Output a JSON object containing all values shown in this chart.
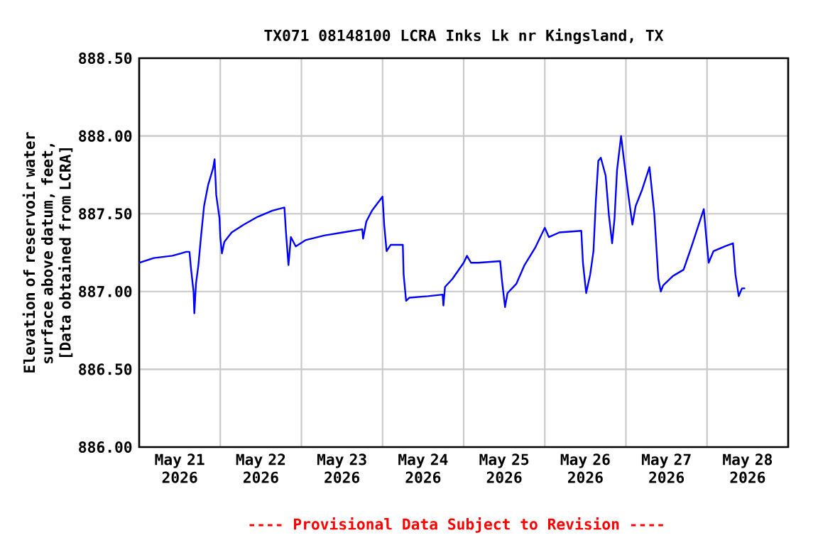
{
  "chart_data": {
    "type": "line",
    "title": "TX071 08148100 LCRA Inks Lk nr Kingsland, TX",
    "ylabel": "Elevation of reservoir water surface above datum, feet, [Data obtained from LCRA]",
    "annotations": [
      "---- Provisional Data Subject to Revision ----"
    ],
    "grid": true,
    "marker": "none",
    "line_style": "solid",
    "xlim": [
      "2026-05-21T00:00",
      "2026-05-29T00:00"
    ],
    "xticks": [
      {
        "value": "2026-05-21T12:00",
        "label": "May 21 2026"
      },
      {
        "value": "2026-05-22T12:00",
        "label": "May 22 2026"
      },
      {
        "value": "2026-05-23T12:00",
        "label": "May 23 2026"
      },
      {
        "value": "2026-05-24T12:00",
        "label": "May 24 2026"
      },
      {
        "value": "2026-05-25T12:00",
        "label": "May 25 2026"
      },
      {
        "value": "2026-05-26T12:00",
        "label": "May 26 2026"
      },
      {
        "value": "2026-05-27T12:00",
        "label": "May 27 2026"
      },
      {
        "value": "2026-05-28T12:00",
        "label": "May 28 2026"
      },
      {
        "value": "2026-05-22T00:00",
        "label": null
      },
      {
        "value": "2026-05-23T00:00",
        "label": null
      },
      {
        "value": "2026-05-24T00:00",
        "label": null
      },
      {
        "value": "2026-05-25T00:00",
        "label": null
      },
      {
        "value": "2026-05-26T00:00",
        "label": null
      },
      {
        "value": "2026-05-27T00:00",
        "label": null
      },
      {
        "value": "2026-05-28T00:00",
        "label": null
      }
    ],
    "ylim": [
      886,
      888.5
    ],
    "yticks": [
      {
        "value": 886,
        "label": "886.00"
      },
      {
        "value": 886.5,
        "label": "886.50"
      },
      {
        "value": 887,
        "label": "887.00"
      },
      {
        "value": 887.5,
        "label": "887.50"
      },
      {
        "value": 888,
        "label": "888.00"
      },
      {
        "value": 888.5,
        "label": "888.50"
      }
    ],
    "series": [
      {
        "color": "#0000ff",
        "x": [
          "2026-05-21T00:00",
          "2026-05-21T04:19",
          "2026-05-21T09:50",
          "2026-05-21T13:55",
          "2026-05-21T14:53",
          "2026-05-21T15:22",
          "2026-05-21T16:05",
          "2026-05-21T16:19",
          "2026-05-21T16:48",
          "2026-05-21T17:31",
          "2026-05-21T18:14",
          "2026-05-21T19:12",
          "2026-05-21T20:24",
          "2026-05-21T21:50",
          "2026-05-21T22:19",
          "2026-05-21T22:48",
          "2026-05-21T23:46",
          "2026-05-22T00:00",
          "2026-05-22T00:29",
          "2026-05-22T01:12",
          "2026-05-22T03:22",
          "2026-05-22T06:58",
          "2026-05-22T11:02",
          "2026-05-22T15:22",
          "2026-05-22T18:58",
          "2026-05-22T19:26",
          "2026-05-22T20:10",
          "2026-05-22T20:53",
          "2026-05-22T22:19",
          "2026-05-23T01:12",
          "2026-05-23T06:43",
          "2026-05-23T12:14",
          "2026-05-23T18:00",
          "2026-05-23T18:14",
          "2026-05-23T19:12",
          "2026-05-23T20:53",
          "2026-05-24T00:00",
          "2026-05-24T00:29",
          "2026-05-24T01:12",
          "2026-05-24T02:24",
          "2026-05-24T06:00",
          "2026-05-24T06:14",
          "2026-05-24T06:58",
          "2026-05-24T07:55",
          "2026-05-24T13:26",
          "2026-05-24T17:46",
          "2026-05-24T18:00",
          "2026-05-24T18:29",
          "2026-05-24T20:38",
          "2026-05-25T00:00",
          "2026-05-25T00:58",
          "2026-05-25T02:10",
          "2026-05-25T04:19",
          "2026-05-25T10:48",
          "2026-05-25T11:17",
          "2026-05-25T12:14",
          "2026-05-25T12:58",
          "2026-05-25T15:36",
          "2026-05-25T18:00",
          "2026-05-25T21:07",
          "2026-05-26T00:00",
          "2026-05-26T01:12",
          "2026-05-26T04:19",
          "2026-05-26T10:48",
          "2026-05-26T11:17",
          "2026-05-26T12:14",
          "2026-05-26T13:26",
          "2026-05-26T14:24",
          "2026-05-26T15:07",
          "2026-05-26T15:50",
          "2026-05-26T16:34",
          "2026-05-26T18:00",
          "2026-05-26T18:58",
          "2026-05-26T19:55",
          "2026-05-26T20:38",
          "2026-05-26T21:22",
          "2026-05-26T22:34",
          "2026-05-26T23:17",
          "2026-05-27T00:43",
          "2026-05-27T01:55",
          "2026-05-27T02:53",
          "2026-05-27T04:48",
          "2026-05-27T06:58",
          "2026-05-27T08:24",
          "2026-05-27T09:36",
          "2026-05-27T10:19",
          "2026-05-27T11:02",
          "2026-05-27T13:55",
          "2026-05-27T17:02",
          "2026-05-27T17:46",
          "2026-05-27T19:26",
          "2026-05-27T23:02",
          "2026-05-27T23:46",
          "2026-05-28T00:29",
          "2026-05-28T01:55",
          "2026-05-28T05:17",
          "2026-05-28T07:41",
          "2026-05-28T08:24",
          "2026-05-28T09:22",
          "2026-05-28T10:19",
          "2026-05-28T11:17"
        ],
        "values": [
          887.185,
          887.215,
          887.23,
          887.255,
          887.255,
          887.14,
          887.0,
          886.86,
          887.05,
          887.17,
          887.34,
          887.55,
          887.685,
          887.79,
          887.85,
          887.62,
          887.47,
          887.35,
          887.245,
          887.32,
          887.38,
          887.43,
          887.48,
          887.52,
          887.54,
          887.38,
          887.17,
          887.35,
          887.29,
          887.33,
          887.36,
          887.38,
          887.4,
          887.34,
          887.45,
          887.52,
          887.61,
          887.43,
          887.26,
          887.3,
          887.3,
          887.11,
          886.94,
          886.96,
          886.97,
          886.98,
          886.91,
          887.03,
          887.08,
          887.185,
          887.23,
          887.185,
          887.185,
          887.195,
          887.08,
          886.9,
          886.99,
          887.05,
          887.17,
          887.28,
          887.41,
          887.35,
          887.38,
          887.39,
          887.185,
          886.99,
          887.11,
          887.26,
          887.59,
          887.84,
          887.86,
          887.745,
          887.49,
          887.31,
          887.47,
          887.78,
          888.0,
          887.87,
          887.62,
          887.43,
          887.55,
          887.655,
          887.8,
          887.5,
          887.08,
          887.0,
          887.04,
          887.1,
          887.14,
          887.185,
          887.29,
          887.53,
          887.35,
          887.185,
          887.26,
          887.29,
          887.31,
          887.11,
          886.97,
          887.02,
          887.02
        ]
      }
    ]
  }
}
